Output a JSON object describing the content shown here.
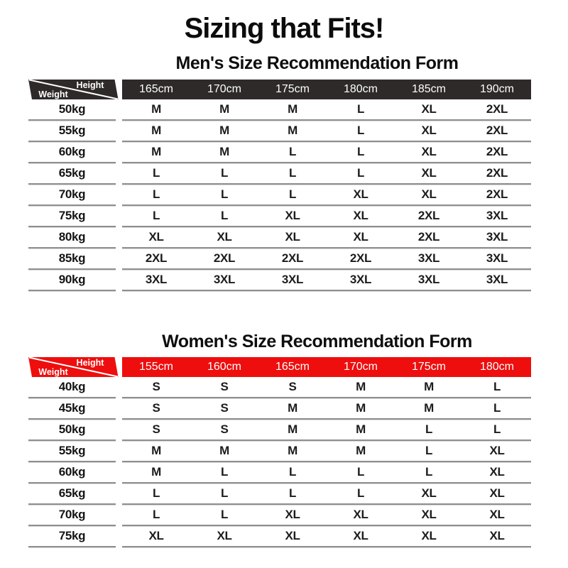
{
  "page": {
    "title": "Sizing that Fits!"
  },
  "colors": {
    "men_header_bg": "#2d2a29",
    "women_header_bg": "#ee0e0e",
    "separator_line": "#8f8f8f",
    "header_text": "#ffffff",
    "body_text": "#1c1c1c"
  },
  "tables": [
    {
      "id": "men",
      "title": "Men's Size Recommendation Form",
      "corner": {
        "top_label": "Height",
        "bottom_label": "Weight"
      },
      "colors": {
        "header_bg": "#2d2a29"
      },
      "columns": [
        "165cm",
        "170cm",
        "175cm",
        "180cm",
        "185cm",
        "190cm"
      ],
      "rows": [
        {
          "weight": "50kg",
          "values": [
            "M",
            "M",
            "M",
            "L",
            "XL",
            "2XL"
          ]
        },
        {
          "weight": "55kg",
          "values": [
            "M",
            "M",
            "M",
            "L",
            "XL",
            "2XL"
          ]
        },
        {
          "weight": "60kg",
          "values": [
            "M",
            "M",
            "L",
            "L",
            "XL",
            "2XL"
          ]
        },
        {
          "weight": "65kg",
          "values": [
            "L",
            "L",
            "L",
            "L",
            "XL",
            "2XL"
          ]
        },
        {
          "weight": "70kg",
          "values": [
            "L",
            "L",
            "L",
            "XL",
            "XL",
            "2XL"
          ]
        },
        {
          "weight": "75kg",
          "values": [
            "L",
            "L",
            "XL",
            "XL",
            "2XL",
            "3XL"
          ]
        },
        {
          "weight": "80kg",
          "values": [
            "XL",
            "XL",
            "XL",
            "XL",
            "2XL",
            "3XL"
          ]
        },
        {
          "weight": "85kg",
          "values": [
            "2XL",
            "2XL",
            "2XL",
            "2XL",
            "3XL",
            "3XL"
          ]
        },
        {
          "weight": "90kg",
          "values": [
            "3XL",
            "3XL",
            "3XL",
            "3XL",
            "3XL",
            "3XL"
          ]
        }
      ]
    },
    {
      "id": "women",
      "title": "Women's Size Recommendation Form",
      "corner": {
        "top_label": "Height",
        "bottom_label": "Weight"
      },
      "colors": {
        "header_bg": "#ee0e0e"
      },
      "columns": [
        "155cm",
        "160cm",
        "165cm",
        "170cm",
        "175cm",
        "180cm"
      ],
      "rows": [
        {
          "weight": "40kg",
          "values": [
            "S",
            "S",
            "S",
            "M",
            "M",
            "L"
          ]
        },
        {
          "weight": "45kg",
          "values": [
            "S",
            "S",
            "M",
            "M",
            "M",
            "L"
          ]
        },
        {
          "weight": "50kg",
          "values": [
            "S",
            "S",
            "M",
            "M",
            "L",
            "L"
          ]
        },
        {
          "weight": "55kg",
          "values": [
            "M",
            "M",
            "M",
            "M",
            "L",
            "XL"
          ]
        },
        {
          "weight": "60kg",
          "values": [
            "M",
            "L",
            "L",
            "L",
            "L",
            "XL"
          ]
        },
        {
          "weight": "65kg",
          "values": [
            "L",
            "L",
            "L",
            "L",
            "XL",
            "XL"
          ]
        },
        {
          "weight": "70kg",
          "values": [
            "L",
            "L",
            "XL",
            "XL",
            "XL",
            "XL"
          ]
        },
        {
          "weight": "75kg",
          "values": [
            "XL",
            "XL",
            "XL",
            "XL",
            "XL",
            "XL"
          ]
        }
      ]
    }
  ]
}
